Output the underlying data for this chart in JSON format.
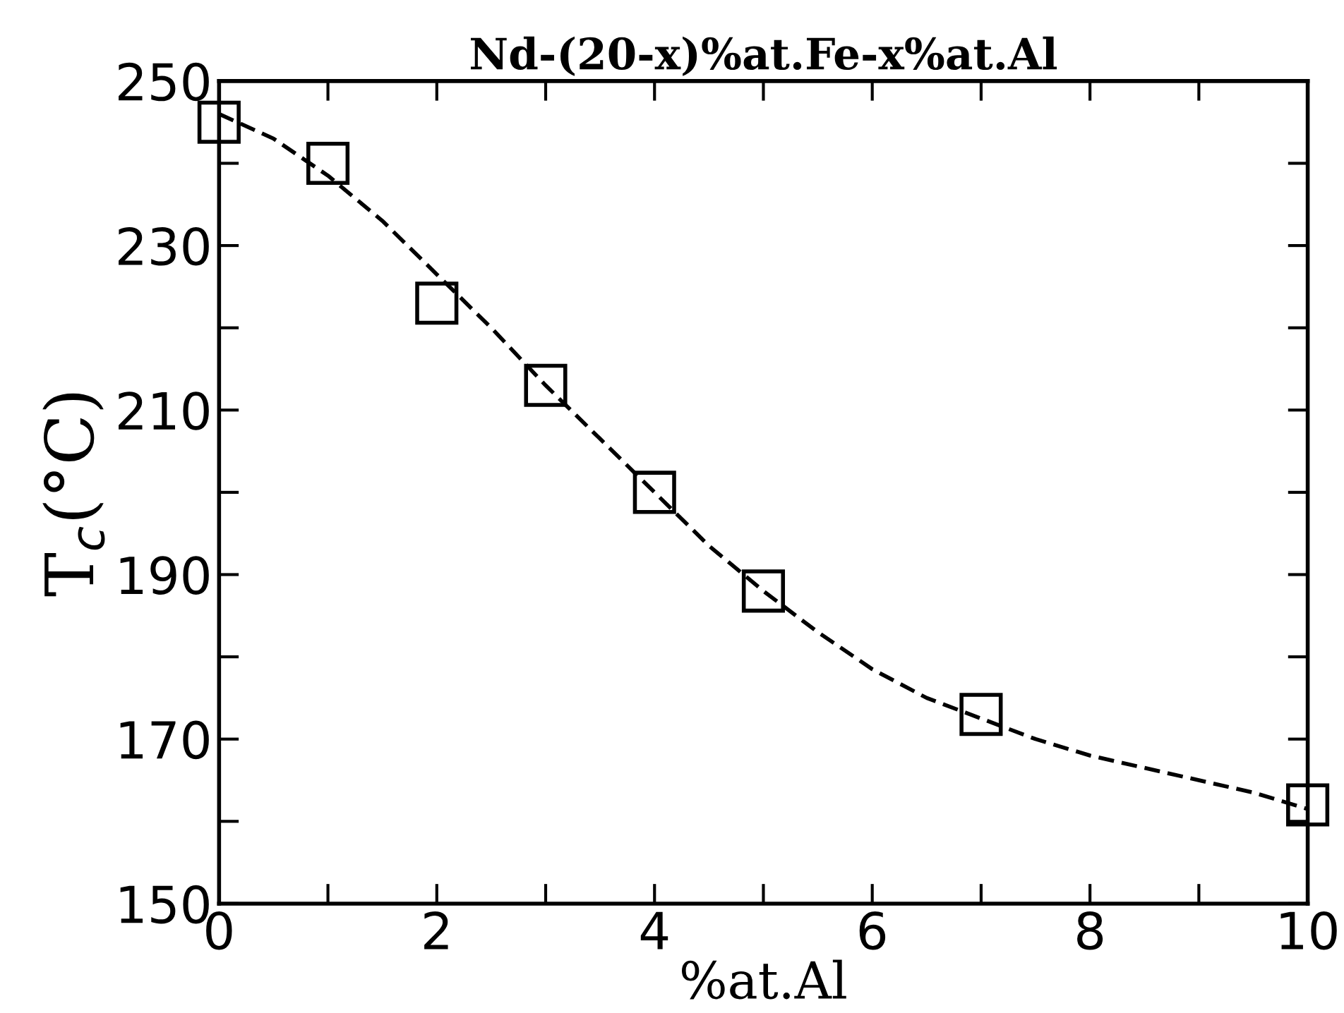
{
  "chart_data": {
    "type": "scatter",
    "title": "Nd-(20-x)%at.Fe-x%at.Al",
    "xlabel": "%at.Al",
    "ylabel": "T$_{c}$(°C)",
    "xlim": [
      0,
      10
    ],
    "ylim": [
      150,
      250
    ],
    "xticks": [
      0,
      {
        "value": 1,
        "label": null
      },
      2,
      {
        "value": 3,
        "label": null
      },
      4,
      {
        "value": 5,
        "label": null
      },
      6,
      {
        "value": 7,
        "label": null
      },
      8,
      {
        "value": 9,
        "label": null
      },
      10
    ],
    "yticks": [
      150,
      {
        "value": 160,
        "label": null
      },
      170,
      {
        "value": 180,
        "label": null
      },
      190,
      {
        "value": 200,
        "label": null
      },
      210,
      {
        "value": 220,
        "label": null
      },
      230,
      {
        "value": 240,
        "label": null
      },
      250
    ],
    "grid": false,
    "legend": false,
    "series": [
      {
        "marker": "square",
        "color": "#000000",
        "x": [
          0,
          1,
          2,
          3,
          4,
          5,
          7,
          10
        ],
        "values": [
          245,
          240,
          223,
          213,
          200,
          188,
          173,
          162
        ]
      },
      {
        "type": "line",
        "line_style": "dashed",
        "marker": "none",
        "color": "#000000",
        "x": [
          0,
          0.5,
          1,
          1.5,
          2,
          2.5,
          3,
          3.5,
          4,
          4.5,
          5,
          5.5,
          6,
          6.5,
          7,
          7.5,
          8,
          8.5,
          9,
          9.5,
          10
        ],
        "values": [
          246,
          243,
          238.5,
          233,
          226.5,
          220,
          213,
          206.5,
          200,
          193.5,
          188,
          183,
          178.5,
          175,
          172.5,
          170,
          168,
          166.5,
          165,
          163.5,
          161.5
        ]
      }
    ]
  }
}
